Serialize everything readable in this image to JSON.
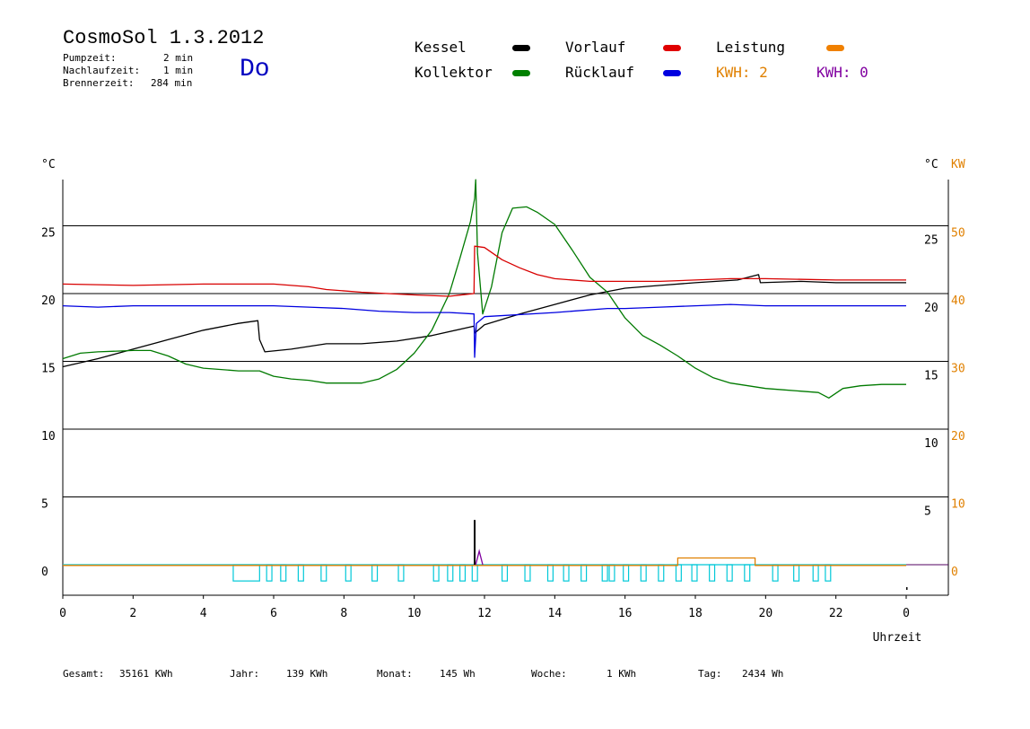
{
  "header": {
    "title": "CosmoSol 1.3.2012",
    "day": "Do",
    "info": [
      {
        "label": "Pumpzeit:",
        "value": "2 min"
      },
      {
        "label": "Nachlaufzeit:",
        "value": "1 min"
      },
      {
        "label": "Brennerzeit:",
        "value": "284 min"
      }
    ]
  },
  "legend": {
    "items": [
      {
        "label": "Kessel",
        "color": "#000000"
      },
      {
        "label": "Kollektor",
        "color": "#008000"
      },
      {
        "label": "Vorlauf",
        "color": "#e00000"
      },
      {
        "label": "Rücklauf",
        "color": "#0000e0"
      },
      {
        "label": "Leistung",
        "color": "#f08000"
      }
    ],
    "kwh_orange": "KWH: 2",
    "kwh_purple": "KWH: 0"
  },
  "colors": {
    "kessel": "#000000",
    "kollektor": "#007a00",
    "vorlauf": "#d80000",
    "ruecklauf": "#0000e0",
    "leistung": "#e08000",
    "pump": "#00c8d8",
    "purple": "#8000a0",
    "kw_axis": "#e08000"
  },
  "footer": {
    "gesamt_label": "Gesamt:",
    "gesamt_value": "35161 KWh",
    "jahr_label": "Jahr:",
    "jahr_value": "139 KWh",
    "monat_label": "Monat:",
    "monat_value": "145 Wh",
    "woche_label": "Woche:",
    "woche_value": "1 KWh",
    "tag_label": "Tag:",
    "tag_value": "2434 Wh"
  },
  "chart_data": {
    "type": "line",
    "xlabel": "Uhrzeit",
    "x_ticks": [
      "0",
      "2",
      "4",
      "6",
      "8",
      "10",
      "12",
      "14",
      "16",
      "18",
      "20",
      "22",
      "0"
    ],
    "xlim": [
      0,
      24
    ],
    "left_axis": {
      "unit": "°C",
      "ticks": [
        0,
        5,
        10,
        15,
        20,
        25
      ],
      "ylim": [
        -2.3,
        28.5
      ]
    },
    "right_axis_c": {
      "unit": "°C",
      "ticks": [
        5,
        10,
        15,
        20,
        25
      ]
    },
    "right_axis_kw": {
      "unit": "KW",
      "ticks": [
        0,
        10,
        20,
        30,
        40,
        50
      ]
    },
    "gridlines": [
      5,
      10,
      15,
      20,
      25
    ],
    "series": [
      {
        "name": "Kessel",
        "key": "kessel",
        "points": [
          [
            0,
            14.6
          ],
          [
            1,
            15.2
          ],
          [
            2,
            15.9
          ],
          [
            3,
            16.6
          ],
          [
            4,
            17.3
          ],
          [
            5,
            17.8
          ],
          [
            5.55,
            18.0
          ],
          [
            5.6,
            16.6
          ],
          [
            5.75,
            15.7
          ],
          [
            6.5,
            15.9
          ],
          [
            7.5,
            16.3
          ],
          [
            8.5,
            16.3
          ],
          [
            9.5,
            16.5
          ],
          [
            10.5,
            16.9
          ],
          [
            11.7,
            17.6
          ],
          [
            11.73,
            17.1
          ],
          [
            12,
            17.7
          ],
          [
            13,
            18.5
          ],
          [
            14,
            19.2
          ],
          [
            15,
            19.9
          ],
          [
            16,
            20.4
          ],
          [
            17,
            20.6
          ],
          [
            18,
            20.8
          ],
          [
            19.2,
            21.0
          ],
          [
            19.8,
            21.4
          ],
          [
            19.85,
            20.8
          ],
          [
            21,
            20.9
          ],
          [
            22,
            20.8
          ],
          [
            24,
            20.8
          ]
        ]
      },
      {
        "name": "Kollektor",
        "key": "kollektor",
        "points": [
          [
            0,
            15.2
          ],
          [
            0.5,
            15.6
          ],
          [
            1,
            15.7
          ],
          [
            2,
            15.8
          ],
          [
            2.5,
            15.8
          ],
          [
            3,
            15.4
          ],
          [
            3.5,
            14.8
          ],
          [
            4,
            14.5
          ],
          [
            5,
            14.3
          ],
          [
            5.6,
            14.3
          ],
          [
            6,
            13.9
          ],
          [
            6.5,
            13.7
          ],
          [
            7,
            13.6
          ],
          [
            7.5,
            13.4
          ],
          [
            8.5,
            13.4
          ],
          [
            9,
            13.7
          ],
          [
            9.5,
            14.4
          ],
          [
            10,
            15.6
          ],
          [
            10.5,
            17.3
          ],
          [
            11,
            20.0
          ],
          [
            11.3,
            22.6
          ],
          [
            11.6,
            25.3
          ],
          [
            11.72,
            27.0
          ],
          [
            11.75,
            28.4
          ],
          [
            11.8,
            23.0
          ],
          [
            11.95,
            18.5
          ],
          [
            12.2,
            20.5
          ],
          [
            12.5,
            24.5
          ],
          [
            12.8,
            26.3
          ],
          [
            13.2,
            26.4
          ],
          [
            13.5,
            26.0
          ],
          [
            14,
            25.1
          ],
          [
            14.5,
            23.2
          ],
          [
            15,
            21.2
          ],
          [
            15.5,
            20.1
          ],
          [
            16,
            18.2
          ],
          [
            16.5,
            16.9
          ],
          [
            17,
            16.2
          ],
          [
            17.5,
            15.4
          ],
          [
            18,
            14.5
          ],
          [
            18.5,
            13.8
          ],
          [
            19,
            13.4
          ],
          [
            19.5,
            13.2
          ],
          [
            20,
            13.0
          ],
          [
            20.5,
            12.9
          ],
          [
            21,
            12.8
          ],
          [
            21.5,
            12.7
          ],
          [
            21.8,
            12.3
          ],
          [
            22.2,
            13.0
          ],
          [
            22.7,
            13.2
          ],
          [
            23.3,
            13.3
          ],
          [
            24,
            13.3
          ]
        ]
      },
      {
        "name": "Vorlauf",
        "key": "vorlauf",
        "points": [
          [
            0,
            20.7
          ],
          [
            2,
            20.6
          ],
          [
            4,
            20.7
          ],
          [
            6,
            20.7
          ],
          [
            7,
            20.5
          ],
          [
            7.5,
            20.3
          ],
          [
            8.5,
            20.1
          ],
          [
            10,
            19.9
          ],
          [
            11,
            19.8
          ],
          [
            11.7,
            20.0
          ],
          [
            11.72,
            23.5
          ],
          [
            12,
            23.4
          ],
          [
            12.5,
            22.5
          ],
          [
            13,
            21.9
          ],
          [
            13.5,
            21.4
          ],
          [
            14,
            21.1
          ],
          [
            15,
            20.9
          ],
          [
            16,
            20.9
          ],
          [
            17,
            20.9
          ],
          [
            18,
            21.0
          ],
          [
            19,
            21.1
          ],
          [
            20,
            21.1
          ],
          [
            22,
            21.0
          ],
          [
            24,
            21.0
          ]
        ]
      },
      {
        "name": "Rücklauf",
        "key": "ruecklauf",
        "points": [
          [
            0,
            19.1
          ],
          [
            1,
            19.0
          ],
          [
            2,
            19.1
          ],
          [
            4,
            19.1
          ],
          [
            6,
            19.1
          ],
          [
            7,
            19.0
          ],
          [
            8,
            18.9
          ],
          [
            9,
            18.7
          ],
          [
            10,
            18.6
          ],
          [
            11,
            18.6
          ],
          [
            11.7,
            18.5
          ],
          [
            11.72,
            15.3
          ],
          [
            11.77,
            17.8
          ],
          [
            12,
            18.3
          ],
          [
            14,
            18.6
          ],
          [
            15.5,
            18.9
          ],
          [
            16,
            18.9
          ],
          [
            17,
            19.0
          ],
          [
            18,
            19.1
          ],
          [
            19,
            19.2
          ],
          [
            20,
            19.1
          ],
          [
            22,
            19.1
          ],
          [
            24,
            19.1
          ]
        ]
      },
      {
        "name": "Leistung",
        "key": "leistung",
        "points": [
          [
            0,
            -0.05
          ],
          [
            17.5,
            -0.05
          ],
          [
            17.5,
            0.5
          ],
          [
            19.7,
            0.5
          ],
          [
            19.7,
            -0.05
          ],
          [
            24,
            -0.05
          ]
        ]
      }
    ],
    "burner_spike": {
      "x": 11.72,
      "values": [
        0,
        3.3
      ]
    },
    "purple_spike": {
      "x": 11.85,
      "values": [
        0,
        1.0
      ]
    },
    "pump_baseline": 0,
    "pump_level": -1.2,
    "pump_pulses": [
      [
        4.85,
        5.6
      ],
      [
        5.8,
        5.95
      ],
      [
        6.2,
        6.35
      ],
      [
        6.7,
        6.85
      ],
      [
        7.35,
        7.5
      ],
      [
        8.05,
        8.2
      ],
      [
        8.8,
        8.95
      ],
      [
        9.55,
        9.7
      ],
      [
        10.55,
        10.7
      ],
      [
        10.95,
        11.1
      ],
      [
        11.3,
        11.45
      ],
      [
        11.65,
        11.8
      ],
      [
        12.5,
        12.65
      ],
      [
        13.15,
        13.3
      ],
      [
        13.8,
        13.95
      ],
      [
        14.25,
        14.4
      ],
      [
        14.75,
        14.9
      ],
      [
        15.35,
        15.5
      ],
      [
        15.55,
        15.7
      ],
      [
        15.95,
        16.1
      ],
      [
        16.45,
        16.6
      ],
      [
        16.95,
        17.1
      ],
      [
        17.45,
        17.6
      ],
      [
        17.9,
        18.05
      ],
      [
        18.4,
        18.55
      ],
      [
        18.9,
        19.05
      ],
      [
        19.4,
        19.55
      ],
      [
        20.2,
        20.35
      ],
      [
        20.8,
        20.95
      ],
      [
        21.35,
        21.5
      ],
      [
        21.7,
        21.85
      ]
    ]
  }
}
